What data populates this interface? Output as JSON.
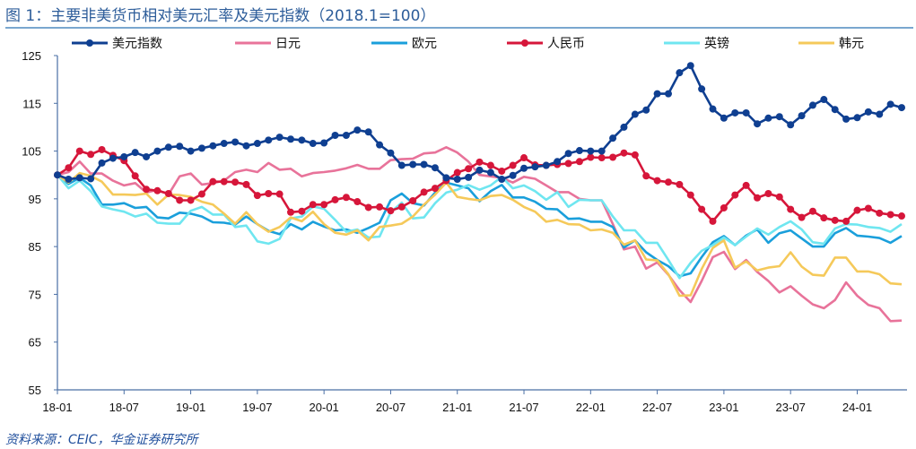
{
  "title": "图 1：主要非美货币相对美元汇率及美元指数（2018.1=100）",
  "source": "资料来源：CEIC，华金证券研究所",
  "chart_data": {
    "type": "line",
    "title": "图 1：主要非美货币相对美元汇率及美元指数（2018.1=100）",
    "xlabel": "",
    "ylabel": "",
    "ylim": [
      55,
      125
    ],
    "yticks": [
      55,
      65,
      75,
      85,
      95,
      105,
      115,
      125
    ],
    "xticks": [
      "18-01",
      "18-07",
      "19-01",
      "19-07",
      "20-01",
      "20-07",
      "21-01",
      "21-07",
      "22-01",
      "22-07",
      "23-01",
      "23-07",
      "24-01"
    ],
    "grid": false,
    "legend": "top",
    "categories": [
      "18-01",
      "18-02",
      "18-03",
      "18-04",
      "18-05",
      "18-06",
      "18-07",
      "18-08",
      "18-09",
      "18-10",
      "18-11",
      "18-12",
      "19-01",
      "19-02",
      "19-03",
      "19-04",
      "19-05",
      "19-06",
      "19-07",
      "19-08",
      "19-09",
      "19-10",
      "19-11",
      "19-12",
      "20-01",
      "20-02",
      "20-03",
      "20-04",
      "20-05",
      "20-06",
      "20-07",
      "20-08",
      "20-09",
      "20-10",
      "20-11",
      "20-12",
      "21-01",
      "21-02",
      "21-03",
      "21-04",
      "21-05",
      "21-06",
      "21-07",
      "21-08",
      "21-09",
      "21-10",
      "21-11",
      "21-12",
      "22-01",
      "22-02",
      "22-03",
      "22-04",
      "22-05",
      "22-06",
      "22-07",
      "22-08",
      "22-09",
      "22-10",
      "22-11",
      "22-12",
      "23-01",
      "23-02",
      "23-03",
      "23-04",
      "23-05",
      "23-06",
      "23-07",
      "23-08",
      "23-09",
      "23-10",
      "23-11",
      "23-12",
      "24-01",
      "24-02",
      "24-03",
      "24-04",
      "24-05"
    ],
    "series": [
      {
        "name": "美元指数",
        "color": "#0f3f91",
        "markers": true,
        "values": [
          100,
          99.1,
          99.4,
          99.2,
          102.5,
          103.5,
          103.8,
          104.7,
          103.8,
          105,
          105.8,
          106,
          105,
          105.6,
          106.1,
          106.6,
          106.9,
          106.1,
          106.6,
          107.3,
          107.9,
          107.5,
          107.3,
          106.6,
          106.7,
          108.3,
          108.3,
          109.4,
          109,
          106.3,
          104.6,
          102,
          102.2,
          102.2,
          101.5,
          99.4,
          99.1,
          99.5,
          101,
          100.5,
          99.1,
          99.9,
          101.4,
          101.7,
          102,
          102.8,
          104.5,
          105.1,
          105,
          105,
          107.7,
          110,
          112.7,
          113.6,
          117,
          117,
          121.4,
          122.9,
          118,
          113.8,
          111.9,
          113,
          113,
          110.7,
          111.9,
          112.2,
          110.5,
          112.4,
          114.6,
          115.8,
          113.7,
          111.7,
          112,
          113.2,
          112.7,
          114.8,
          114.1
        ]
      },
      {
        "name": "日元",
        "color": "#e8739a",
        "markers": false,
        "values": [
          100,
          100.6,
          102.8,
          100.3,
          100.3,
          98.8,
          97.8,
          98.3,
          96.3,
          96.9,
          95.9,
          99.7,
          100.3,
          98,
          98.3,
          98.8,
          100.6,
          101.1,
          100.6,
          102.5,
          101.1,
          101.3,
          99.7,
          100.4,
          100.6,
          100.9,
          101.4,
          102.1,
          101.3,
          101.3,
          103.1,
          103.3,
          103.4,
          104.5,
          104.7,
          105.8,
          104.7,
          102.8,
          100,
          99.7,
          99.4,
          98.4,
          99.6,
          99.2,
          97.8,
          96.4,
          96.4,
          95,
          94.7,
          94.7,
          89.7,
          84.4,
          85,
          80.4,
          81.7,
          79.1,
          75.9,
          73.4,
          77.8,
          82.8,
          83.9,
          80.3,
          82.2,
          79.7,
          77.8,
          75.4,
          76.7,
          74.7,
          72.9,
          72.1,
          73.8,
          77.5,
          74.7,
          72.8,
          72.1,
          69.4,
          69.5
        ]
      },
      {
        "name": "欧元",
        "color": "#1a9fdb",
        "markers": false,
        "values": [
          100,
          98.1,
          99.4,
          97.8,
          93.8,
          93.8,
          94.1,
          93.1,
          93.3,
          91.1,
          90.9,
          92.1,
          91.9,
          91.3,
          90.1,
          90,
          89.6,
          91.3,
          89.7,
          88.3,
          87.6,
          89.7,
          88.6,
          90.2,
          89.2,
          88.4,
          88.6,
          87.9,
          88.9,
          90,
          94.7,
          96.1,
          94.1,
          93.6,
          96.3,
          98.4,
          97.8,
          97.2,
          94.5,
          96.6,
          97.9,
          95.3,
          95.3,
          94.4,
          92.9,
          92.8,
          90.8,
          90.9,
          90.2,
          90.2,
          89.1,
          84.8,
          86.3,
          83.8,
          82.2,
          80.9,
          78.8,
          79.4,
          82.8,
          85.9,
          87.2,
          85.3,
          87.3,
          88.6,
          85.8,
          87.8,
          88.4,
          86.7,
          85,
          85,
          87.8,
          88.9,
          87.3,
          87.1,
          86.8,
          85.8,
          87.2
        ]
      },
      {
        "name": "人民币",
        "color": "#d6163a",
        "markers": true,
        "values": [
          100,
          101.5,
          105,
          104.3,
          105.3,
          104.1,
          103,
          99.8,
          97,
          96.7,
          96.1,
          94.7,
          94.7,
          96,
          98.6,
          98.6,
          98.5,
          98,
          95.7,
          96.1,
          96,
          92.2,
          92.4,
          93.8,
          93.8,
          94.8,
          95.3,
          94.4,
          93.2,
          93.3,
          92.5,
          93.3,
          94.6,
          96.4,
          97.2,
          98.8,
          100.5,
          101.3,
          102.7,
          102,
          100.8,
          102,
          103.6,
          102.1,
          102,
          102.2,
          102.4,
          102.8,
          103.7,
          103.6,
          103.7,
          104.6,
          104.2,
          99.8,
          98.8,
          98.5,
          98,
          95.8,
          92.8,
          90.3,
          93.1,
          95.8,
          97.8,
          95.2,
          96.1,
          95.4,
          92.8,
          91.1,
          92.4,
          91,
          90.5,
          90.3,
          92.6,
          93,
          92,
          91.7,
          91.4
        ]
      },
      {
        "name": "英镑",
        "color": "#6fe6f0",
        "markers": false,
        "values": [
          100,
          97.2,
          98.8,
          96.6,
          93.4,
          92.8,
          92.3,
          91.3,
          91.9,
          90,
          89.8,
          89.8,
          92.5,
          93.3,
          91.7,
          91.7,
          89.1,
          89.4,
          86.1,
          85.6,
          86.6,
          90.9,
          91.3,
          93.4,
          92.9,
          90.6,
          88.1,
          88.6,
          86.9,
          87.1,
          92.2,
          94.2,
          90.9,
          91.1,
          94.1,
          96.3,
          96.9,
          97.9,
          96.9,
          97.8,
          99.6,
          97.2,
          97.8,
          96.6,
          94.8,
          96.4,
          93.3,
          94.8,
          94.7,
          94.7,
          91.3,
          88.4,
          88.4,
          85.8,
          85.8,
          82.2,
          78.4,
          81.6,
          84.1,
          85.3,
          86.9,
          85.3,
          87.1,
          88.8,
          87.5,
          89.1,
          90.3,
          88.6,
          85.9,
          85.6,
          88.8,
          89.7,
          89.6,
          89.1,
          88.9,
          88.1,
          89.7
        ]
      },
      {
        "name": "韩元",
        "color": "#f5c95a",
        "markers": false,
        "values": [
          100,
          98.4,
          100.4,
          99.8,
          98.6,
          95.9,
          95.9,
          95.8,
          96.1,
          93.8,
          95.9,
          95.8,
          95.4,
          94.4,
          93.8,
          91.9,
          89.8,
          92.2,
          89.7,
          88.1,
          89.1,
          91.1,
          90.3,
          92.3,
          89.7,
          87.9,
          87.5,
          88.4,
          86.3,
          89.1,
          89.4,
          89.8,
          91.3,
          93.8,
          95.9,
          98.4,
          95.4,
          95,
          94.7,
          95.6,
          95.8,
          94.8,
          93.3,
          92.3,
          90.2,
          90.6,
          89.7,
          89.6,
          88.4,
          88.6,
          87.9,
          85.4,
          86.3,
          82.3,
          82.1,
          79.2,
          74.7,
          74.8,
          80.3,
          84.7,
          86.3,
          80.6,
          81.9,
          80,
          80.6,
          80.9,
          83.8,
          80.8,
          79.1,
          78.9,
          82.7,
          82.7,
          79.8,
          79.8,
          79.2,
          77.3,
          77.1
        ]
      }
    ]
  }
}
